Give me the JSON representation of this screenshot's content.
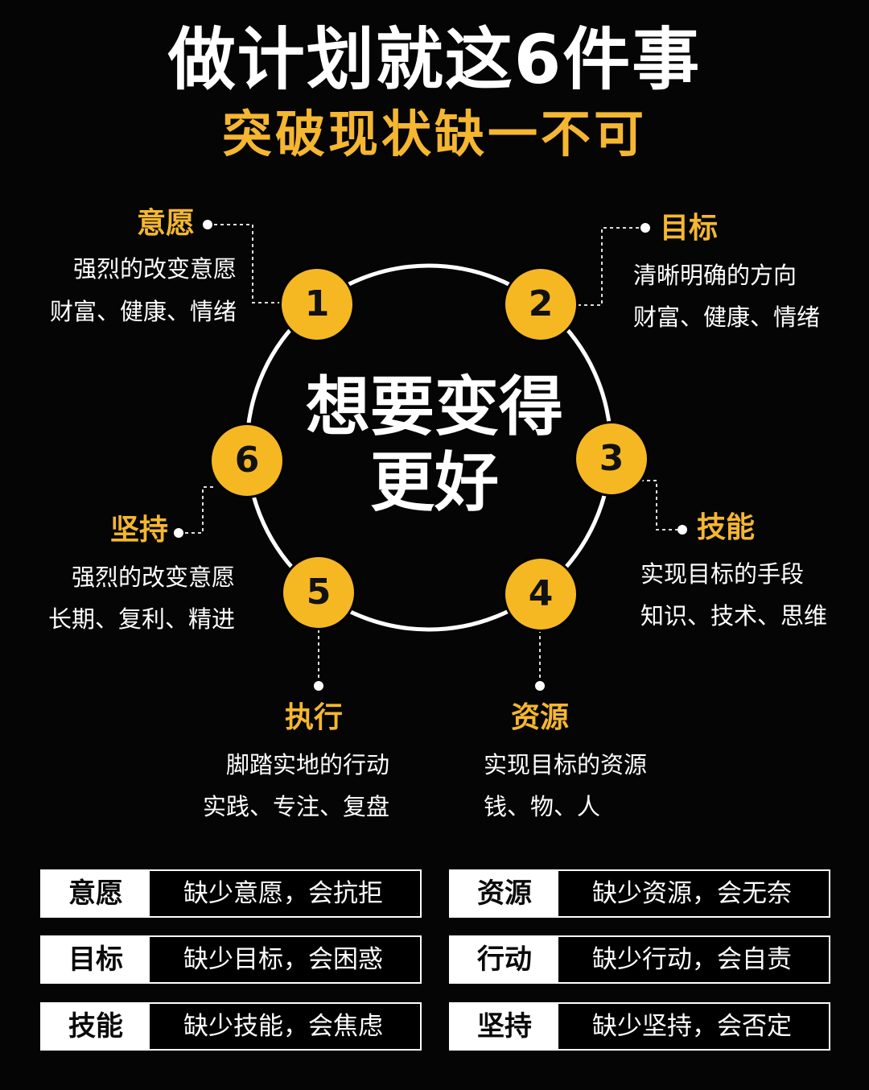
{
  "title": "做计划就这6件事",
  "subtitle": "突破现状缺一不可",
  "center": {
    "line1": "想要变得",
    "line2": "更好"
  },
  "nodes": [
    {
      "number": "1",
      "heading": "意愿",
      "line1": "强烈的改变意愿",
      "line2": "财富、健康、情绪"
    },
    {
      "number": "2",
      "heading": "目标",
      "line1": "清晰明确的方向",
      "line2": "财富、健康、情绪"
    },
    {
      "number": "3",
      "heading": "技能",
      "line1": "实现目标的手段",
      "line2": "知识、技术、思维"
    },
    {
      "number": "4",
      "heading": "资源",
      "line1": "实现目标的资源",
      "line2": "钱、物、人"
    },
    {
      "number": "5",
      "heading": "执行",
      "line1": "脚踏实地的行动",
      "line2": "实践、专注、复盘"
    },
    {
      "number": "6",
      "heading": "坚持",
      "line1": "强烈的改变意愿",
      "line2": "长期、复利、精进"
    }
  ],
  "table": [
    {
      "key": "意愿",
      "value": "缺少意愿，会抗拒"
    },
    {
      "key": "目标",
      "value": "缺少目标，会困惑"
    },
    {
      "key": "技能",
      "value": "缺少技能，会焦虑"
    },
    {
      "key": "资源",
      "value": "缺少资源，会无奈"
    },
    {
      "key": "行动",
      "value": "缺少行动，会自责"
    },
    {
      "key": "坚持",
      "value": "缺少坚持，会否定"
    }
  ],
  "colors": {
    "accent": "#f5b823",
    "background": "#050505",
    "text": "#ffffff"
  }
}
